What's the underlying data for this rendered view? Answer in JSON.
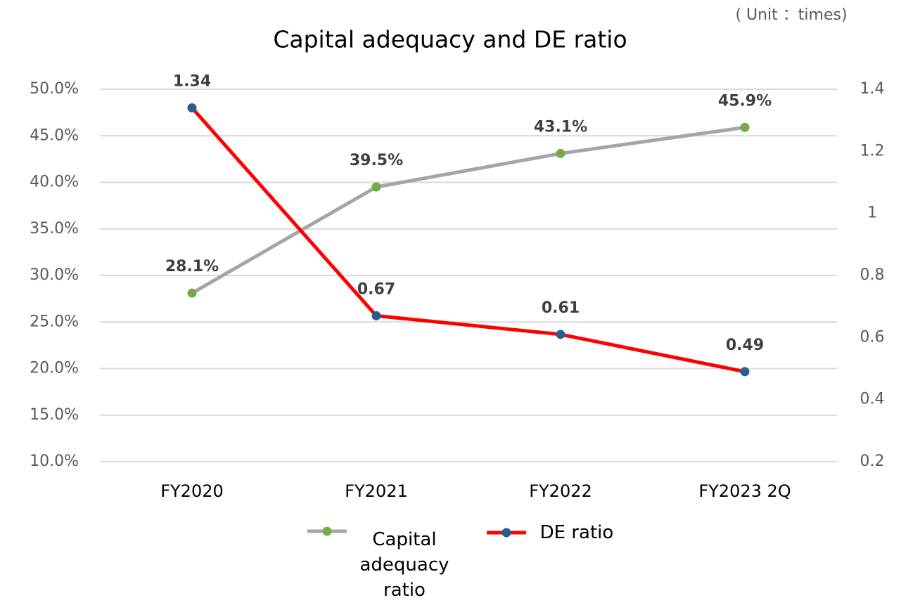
{
  "chart_data": {
    "type": "line",
    "title": "Capital adequacy and DE ratio",
    "annotation": "( Unit ：times)",
    "categories": [
      "FY2020",
      "FY2021",
      "FY2022",
      "FY2023 2Q"
    ],
    "series": [
      {
        "name": "Capital adequacy ratio",
        "color": "#a5a5a5",
        "marker_color": "#70ad47",
        "values": [
          28.1,
          39.5,
          43.1,
          45.9
        ],
        "value_labels": [
          "28.1%",
          "39.5%",
          "43.1%",
          "45.9%"
        ]
      },
      {
        "name": "DE ratio",
        "color": "#ff0000",
        "marker_color": "#255e91",
        "axis": "y2",
        "values": [
          1.34,
          0.67,
          0.61,
          0.49
        ]
      }
    ],
    "ylim": [
      10,
      50
    ],
    "yticks": [
      {
        "value": 10,
        "label": "10.0%"
      },
      {
        "value": 15,
        "label": "15.0%"
      },
      {
        "value": 20,
        "label": "20.0%"
      },
      {
        "value": 25,
        "label": "25.0%"
      },
      {
        "value": 30,
        "label": "30.0%"
      },
      {
        "value": 35,
        "label": "35.0%"
      },
      {
        "value": 40,
        "label": "40.0%"
      },
      {
        "value": 45,
        "label": "45.0%"
      },
      {
        "value": 50,
        "label": "50.0%"
      }
    ],
    "y2lim": [
      0.2,
      1.4
    ],
    "y2ticks": [
      0.2,
      0.4,
      0.6,
      0.8,
      1,
      1.2,
      1.4
    ],
    "grid": true,
    "legend": "bottom"
  }
}
